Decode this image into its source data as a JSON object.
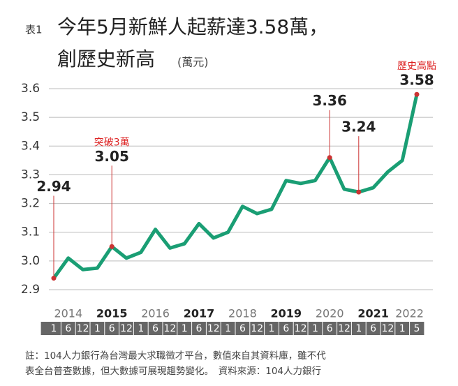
{
  "chart_data": {
    "type": "line",
    "table_no": "表1",
    "title": "今年5月新鮮人起薪達3.58萬，",
    "title_line2": "創歷史新高",
    "unit": "(萬元)",
    "categories": [
      "1",
      "6",
      "12",
      "1",
      "6",
      "12",
      "1",
      "6",
      "12",
      "1",
      "6",
      "12",
      "1",
      "6",
      "12",
      "1",
      "6",
      "12",
      "1",
      "6",
      "12",
      "1",
      "6",
      "12",
      "1",
      "5"
    ],
    "years": [
      "2014",
      "2015",
      "2016",
      "2017",
      "2018",
      "2019",
      "2020",
      "2021",
      "2022"
    ],
    "values": [
      2.94,
      3.01,
      2.97,
      2.975,
      3.05,
      3.01,
      3.03,
      3.11,
      3.045,
      3.06,
      3.13,
      3.08,
      3.1,
      3.19,
      3.165,
      3.18,
      3.28,
      3.27,
      3.28,
      3.36,
      3.25,
      3.24,
      3.255,
      3.31,
      3.35,
      3.58
    ],
    "color": "#1a9e74",
    "highlight_points": [
      0,
      4,
      19,
      21,
      25
    ],
    "annotations": [
      {
        "index": 4,
        "text": "突破3萬"
      },
      {
        "index": 25,
        "text": "歷史高點"
      }
    ],
    "ylim": [
      2.9,
      3.6
    ],
    "yticks": [
      2.9,
      {
        "value": 3,
        "label": "3.0"
      },
      3.1,
      3.2,
      3.3,
      3.4,
      3.5,
      3.6
    ],
    "grid": true,
    "notes": [
      "註：104人力銀行為台灣最大求職徵才平台，數值來自其資料庫，雖不代",
      "表全台普查數據，但大數據可展現趨勢變化。　資料來源：104人力銀行"
    ]
  }
}
